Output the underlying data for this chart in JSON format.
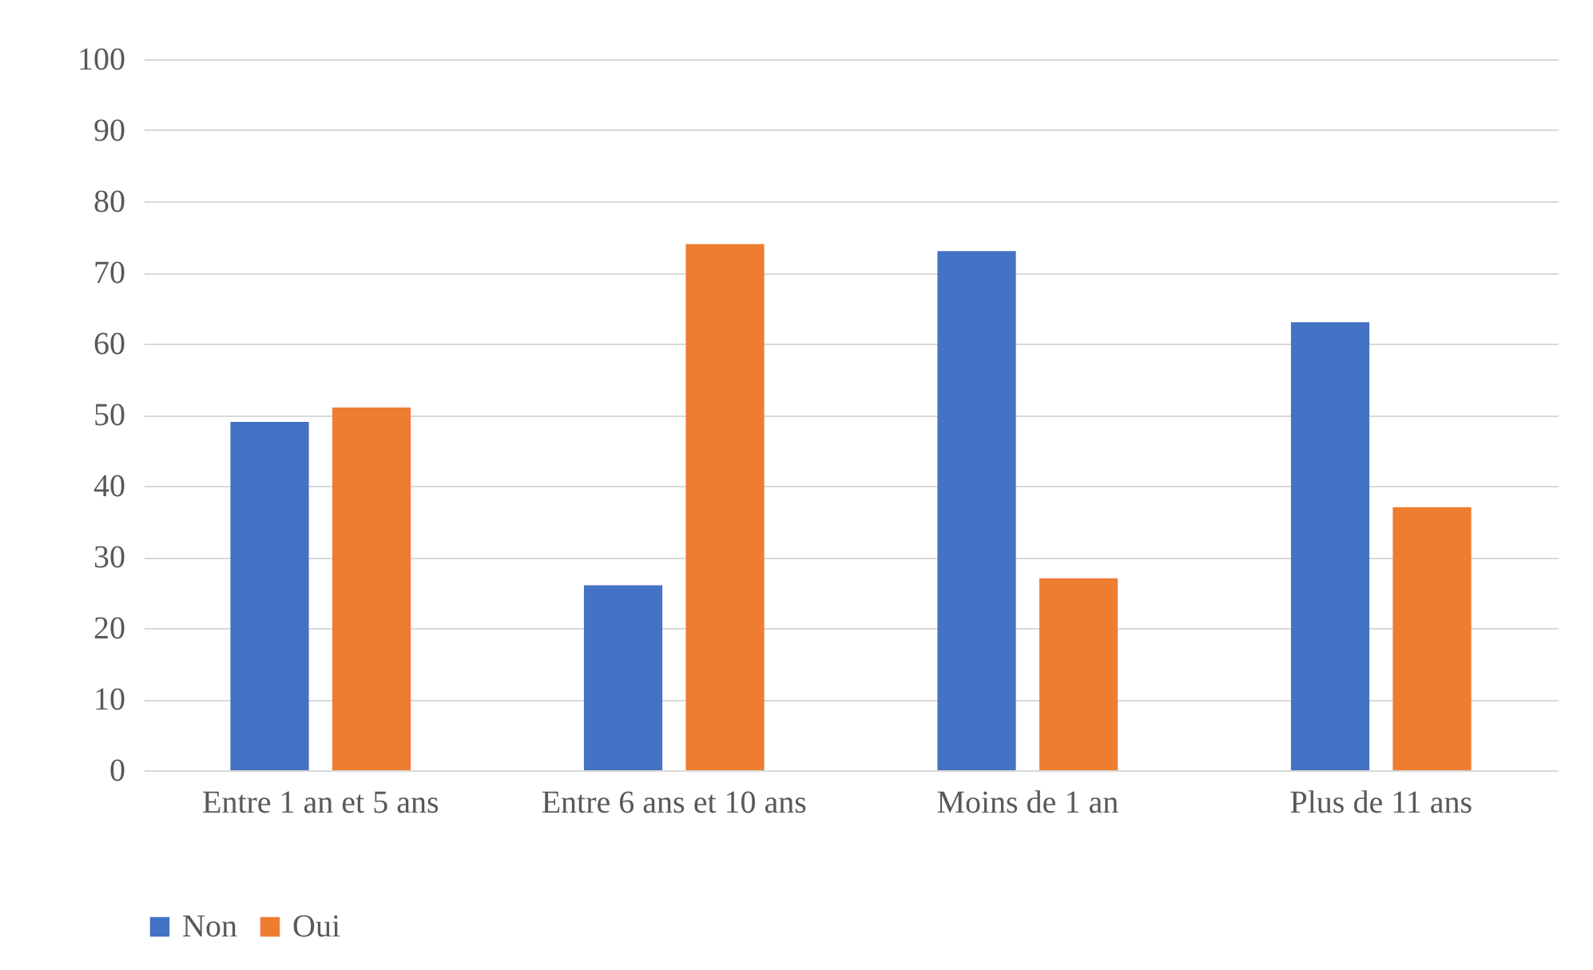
{
  "chart_data": {
    "type": "bar",
    "categories": [
      "Entre 1 an et 5 ans",
      "Entre 6 ans et 10 ans",
      "Moins de 1 an",
      "Plus de 11 ans"
    ],
    "series": [
      {
        "name": "Non",
        "color": "#4472c4",
        "values": [
          49,
          26,
          73,
          63
        ]
      },
      {
        "name": "Oui",
        "color": "#ed7d31",
        "values": [
          51,
          74,
          27,
          37
        ]
      }
    ],
    "ylim": [
      0,
      100
    ],
    "yticks": [
      0,
      10,
      20,
      30,
      40,
      50,
      60,
      70,
      80,
      90,
      100
    ],
    "grid": "y",
    "legend": "bottom"
  }
}
